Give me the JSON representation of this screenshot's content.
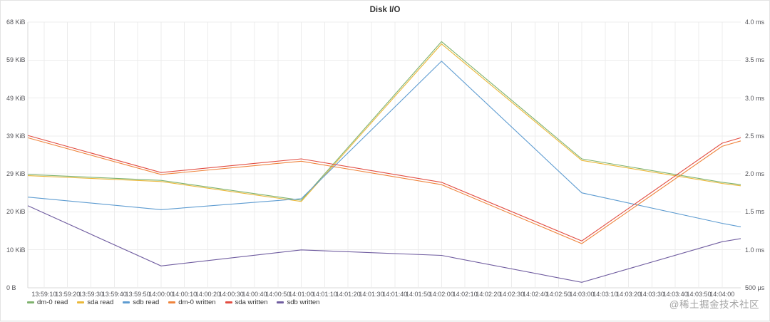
{
  "panel": {
    "title": "Disk I/O"
  },
  "watermark": {
    "text": "@稀土掘金技术社区"
  },
  "colors": {
    "grid": "#ececec",
    "axis_line": "#d8d8d8",
    "axis_text": "#545459",
    "panel_border": "#e3e3e3",
    "background": "#ffffff"
  },
  "chart_data": {
    "type": "line",
    "title": "Disk I/O",
    "x_labels": [
      "13:59:10",
      "13:59:20",
      "13:59:30",
      "13:59:40",
      "13:59:50",
      "14:00:00",
      "14:00:10",
      "14:00:20",
      "14:00:30",
      "14:00:40",
      "14:00:50",
      "14:01:00",
      "14:01:10",
      "14:01:20",
      "14:01:30",
      "14:01:40",
      "14:01:50",
      "14:02:00",
      "14:02:10",
      "14:02:20",
      "14:02:30",
      "14:02:40",
      "14:02:50",
      "14:03:00",
      "14:03:10",
      "14:03:20",
      "14:03:30",
      "14:03:40",
      "14:03:50",
      "14:04:00"
    ],
    "x_first_tick_offset_seconds": 7,
    "x_tick_interval_seconds": 10,
    "x_window_seconds": 305,
    "x_offsets_seconds": [
      0,
      57,
      117,
      177,
      237,
      297,
      305
    ],
    "ylim": [
      0,
      68
    ],
    "y_unit": "KiB",
    "left_axis_labels": [
      "68 KiB",
      "59 KiB",
      "49 KiB",
      "39 KiB",
      "29 KiB",
      "20 KiB",
      "10 KiB",
      "0 B"
    ],
    "right_axis_labels": [
      "4.0 ms",
      "3.5 ms",
      "3.0 ms",
      "2.5 ms",
      "2.0 ms",
      "1.5 ms",
      "1.0 ms",
      "500 µs"
    ],
    "grid": true,
    "legend_position": "bottom-left",
    "series": [
      {
        "name": "dm-0 read",
        "color": "#7EB26D",
        "axis": "left",
        "values": [
          29,
          27.5,
          22.4,
          63,
          33,
          27,
          26.4
        ]
      },
      {
        "name": "sda read",
        "color": "#EAB839",
        "axis": "left",
        "values": [
          28.7,
          27.2,
          22.1,
          62.4,
          32.6,
          26.7,
          26.1
        ]
      },
      {
        "name": "sdb read",
        "color": "#5e9cd1",
        "axis": "left",
        "values": [
          23.2,
          20,
          22.8,
          58,
          24.3,
          16.5,
          15.6
        ]
      },
      {
        "name": "dm-0 written",
        "color": "#EF843C",
        "axis": "left",
        "values": [
          38.4,
          29,
          32.4,
          26.4,
          11.3,
          36.2,
          37.6
        ]
      },
      {
        "name": "sda written",
        "color": "#E24D42",
        "axis": "left",
        "values": [
          39,
          29.5,
          33,
          27,
          12,
          37,
          38.4
        ]
      },
      {
        "name": "sdb written",
        "color": "#705DA0",
        "axis": "left",
        "values": [
          21,
          5.6,
          9.7,
          8.3,
          1.4,
          11.8,
          12.6
        ]
      }
    ]
  }
}
